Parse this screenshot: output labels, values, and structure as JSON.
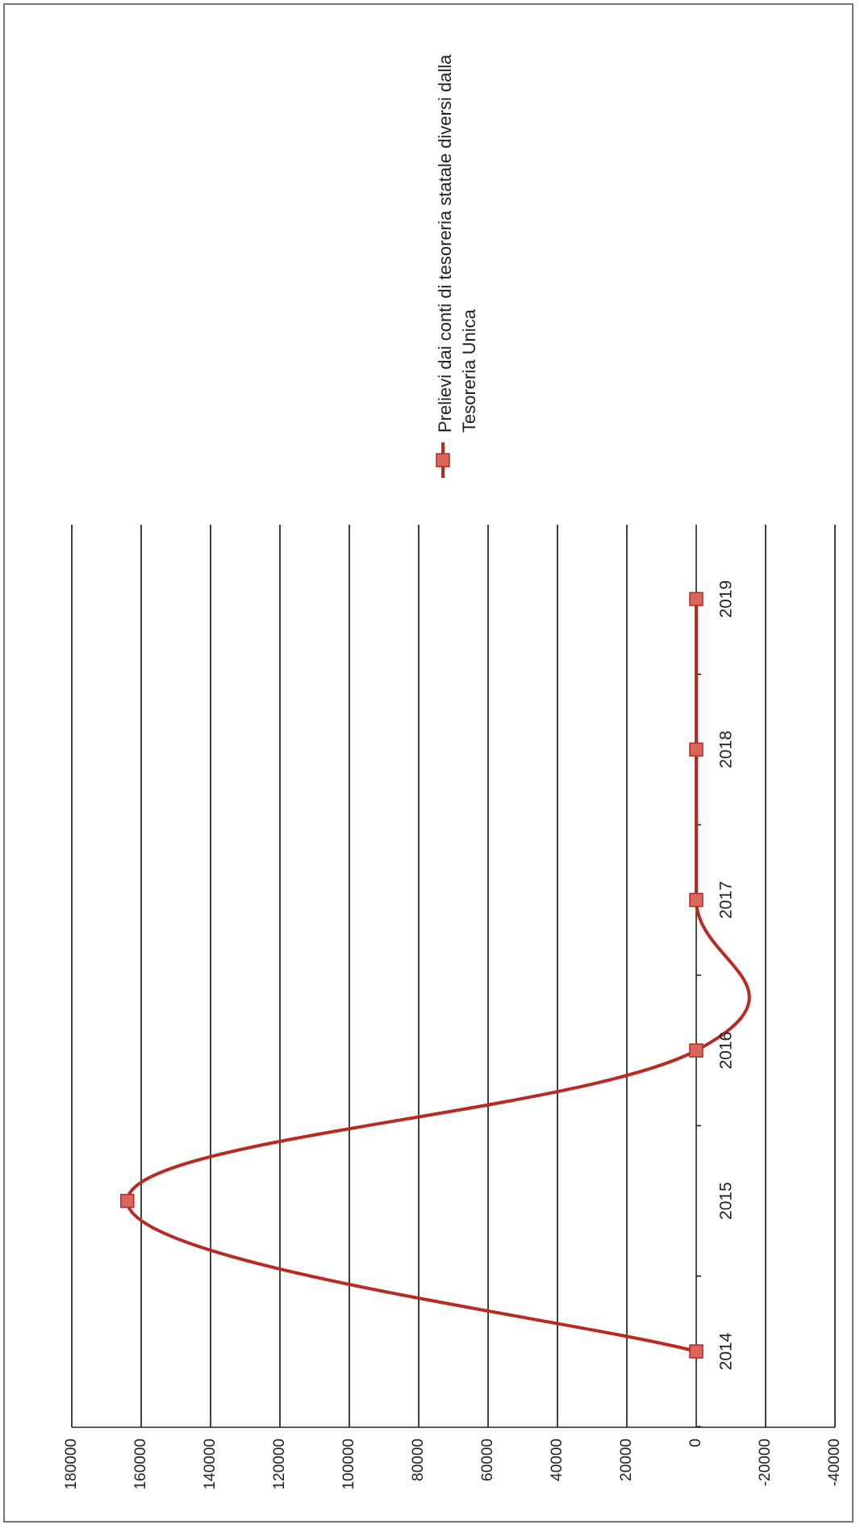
{
  "chart_data": {
    "type": "line",
    "orientation": "rotated-90-clockwise",
    "title": "",
    "xlabel": "",
    "ylabel": "",
    "categories": [
      "2014",
      "2015",
      "2016",
      "2017",
      "2018",
      "2019"
    ],
    "ylim": [
      -40000,
      180000
    ],
    "yticks": [
      "180000",
      "160000",
      "140000",
      "120000",
      "100000",
      "80000",
      "60000",
      "40000",
      "20000",
      "0",
      "-20000",
      "-40000"
    ],
    "ytick_values": [
      180000,
      160000,
      140000,
      120000,
      100000,
      80000,
      60000,
      40000,
      20000,
      0,
      -20000,
      -40000
    ],
    "grid": true,
    "smoothed": true,
    "legend_position": "right",
    "series": [
      {
        "name": "Prelievi dai conti di tesoreria statale diversi dalla Tesoreria Unica",
        "name_lines": [
          "Prelievi dai conti di tesoreria statale diversi dalla",
          "Tesoreria Unica"
        ],
        "values": [
          0,
          164000,
          0,
          0,
          0,
          0
        ],
        "color": "#b82a22",
        "marker_color": "#d9675e"
      }
    ]
  }
}
